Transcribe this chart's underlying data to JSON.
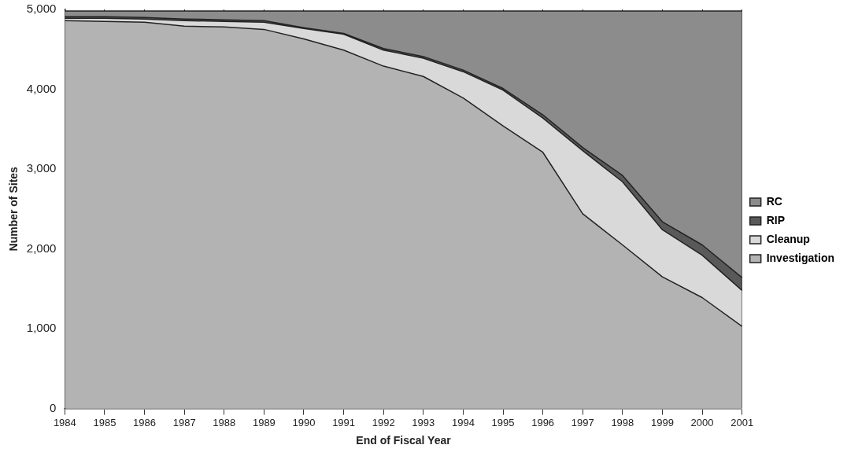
{
  "chart_data": {
    "type": "area",
    "stacked": true,
    "xlabel": "End of Fiscal Year",
    "ylabel": "Number of Sites",
    "categories": [
      "1984",
      "1985",
      "1986",
      "1987",
      "1988",
      "1989",
      "1990",
      "1991",
      "1992",
      "1993",
      "1994",
      "1995",
      "1996",
      "1997",
      "1998",
      "1999",
      "2000",
      "2001"
    ],
    "series": [
      {
        "name": "Investigation",
        "color": "#b3b3b3",
        "values": [
          4860,
          4850,
          4840,
          4790,
          4780,
          4750,
          4630,
          4490,
          4290,
          4160,
          3890,
          3540,
          3210,
          2440,
          2050,
          1650,
          1390,
          1030
        ]
      },
      {
        "name": "Cleanup",
        "color": "#d9d9d9",
        "values": [
          30,
          40,
          40,
          70,
          70,
          90,
          130,
          200,
          200,
          230,
          330,
          450,
          430,
          790,
          790,
          590,
          530,
          450
        ]
      },
      {
        "name": "RIP",
        "color": "#595959",
        "values": [
          20,
          20,
          20,
          20,
          20,
          20,
          10,
          10,
          20,
          20,
          20,
          20,
          40,
          40,
          80,
          100,
          130,
          160
        ]
      },
      {
        "name": "RC",
        "color": "#8c8c8c",
        "values": [
          70,
          70,
          80,
          100,
          110,
          120,
          210,
          280,
          470,
          570,
          740,
          970,
          1300,
          1710,
          2060,
          2640,
          2930,
          3340
        ]
      }
    ],
    "ylim": [
      0,
      5000
    ],
    "yticks": [
      {
        "value": 0,
        "label": "0"
      },
      {
        "value": 1000,
        "label": "1,000"
      },
      {
        "value": 2000,
        "label": "2,000"
      },
      {
        "value": 3000,
        "label": "3,000"
      },
      {
        "value": 4000,
        "label": "4,000"
      },
      {
        "value": 5000,
        "label": "5,000"
      }
    ],
    "grid": "x",
    "legend": "right",
    "marker": "none"
  }
}
